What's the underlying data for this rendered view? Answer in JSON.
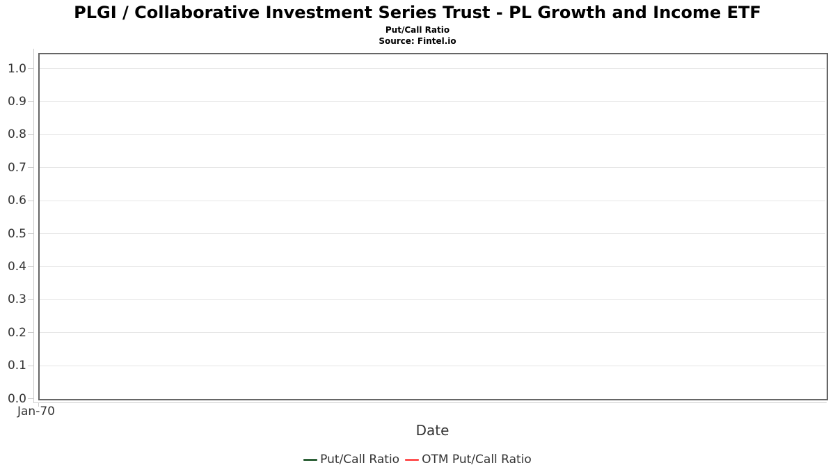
{
  "header": {
    "title": "PLGI / Collaborative Investment Series Trust - PL Growth and Income ETF",
    "subtitle": "Put/Call Ratio",
    "source": "Source: Fintel.io"
  },
  "chart_data": {
    "type": "line",
    "title": "Put/Call Ratio",
    "xlabel": "Date",
    "ylabel": "",
    "ylim": [
      0,
      1.047
    ],
    "yticks": [
      0.0,
      0.1,
      0.2,
      0.3,
      0.4,
      0.5,
      0.6,
      0.7,
      0.8,
      0.9,
      1.0
    ],
    "ytick_labels": [
      "0.0",
      "0.1",
      "0.2",
      "0.3",
      "0.4",
      "0.5",
      "0.6",
      "0.7",
      "0.8",
      "0.9",
      "1.0"
    ],
    "xtick_labels": [
      "Jan-70"
    ],
    "grid": true,
    "legend_position": "bottom",
    "series": [
      {
        "name": "Put/Call Ratio",
        "color": "#2e6138",
        "x": [],
        "values": []
      },
      {
        "name": "OTM Put/Call Ratio",
        "color": "#ff5252",
        "x": [],
        "values": []
      }
    ]
  },
  "colors": {
    "plot_border": "#666666",
    "gridline": "#e6e6e6",
    "axis_line": "#cccccc",
    "text": "#333333",
    "title_text": "#000000"
  }
}
